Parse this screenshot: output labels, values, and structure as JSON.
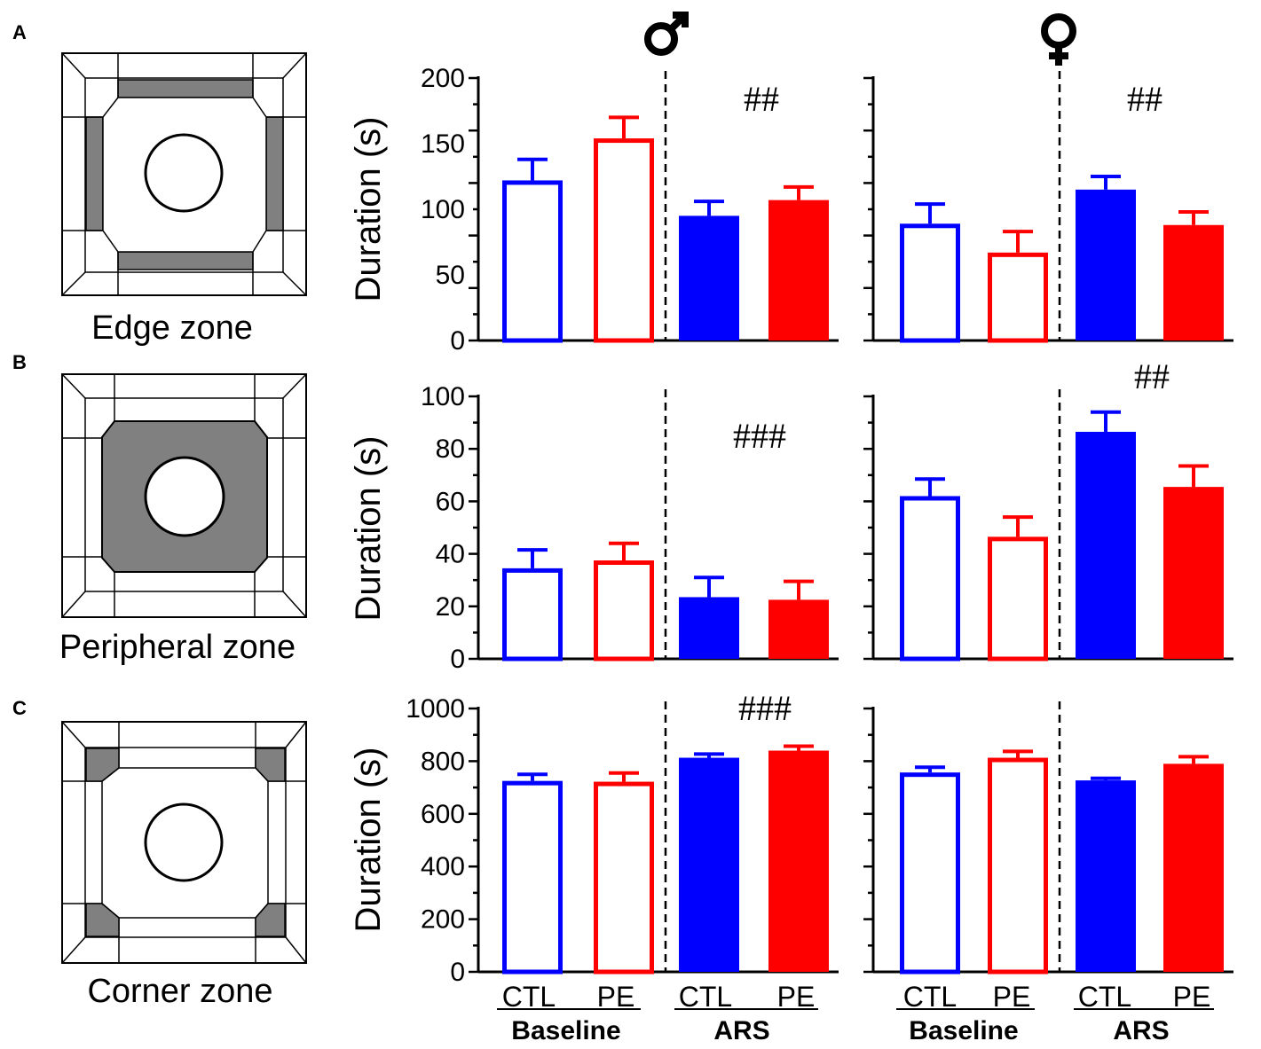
{
  "panel_labels": [
    "A",
    "B",
    "C"
  ],
  "zones": [
    "Edge zone",
    "Peripheral zone",
    "Corner zone"
  ],
  "sex_headers": [
    "male-symbol",
    "female-symbol"
  ],
  "x_axis": {
    "categories": [
      "CTL",
      "PE",
      "CTL",
      "PE"
    ],
    "groups": [
      "Baseline",
      "ARS"
    ]
  },
  "colors": {
    "ctl": "#0000ff",
    "pe": "#ff0000",
    "axis": "#000000",
    "zone_fill": "#808080"
  },
  "chart_data": [
    {
      "type": "bar",
      "panel": "A",
      "zone": "Edge zone",
      "sex": "male",
      "ylabel": "Duration (s)",
      "ylim": [
        0,
        200
      ],
      "yticks": [
        "0",
        "50",
        "100",
        "150",
        "200"
      ],
      "categories": [
        "Baseline CTL",
        "Baseline PE",
        "ARS CTL",
        "ARS PE"
      ],
      "values": [
        122,
        154,
        95,
        107
      ],
      "errors": [
        16,
        16,
        11,
        10
      ],
      "filled": [
        false,
        false,
        true,
        true
      ],
      "significance": "##"
    },
    {
      "type": "bar",
      "panel": "A",
      "zone": "Edge zone",
      "sex": "female",
      "ylabel": "",
      "ylim": [
        0,
        200
      ],
      "yticks": [],
      "categories": [
        "Baseline CTL",
        "Baseline PE",
        "ARS CTL",
        "ARS PE"
      ],
      "values": [
        89,
        67,
        115,
        88
      ],
      "errors": [
        15,
        16,
        10,
        10
      ],
      "filled": [
        false,
        false,
        true,
        true
      ],
      "significance": "##"
    },
    {
      "type": "bar",
      "panel": "B",
      "zone": "Peripheral zone",
      "sex": "male",
      "ylabel": "Duration (s)",
      "ylim": [
        0,
        100
      ],
      "yticks": [
        "0",
        "20",
        "40",
        "60",
        "80",
        "100"
      ],
      "categories": [
        "Baseline CTL",
        "Baseline PE",
        "ARS CTL",
        "ARS PE"
      ],
      "values": [
        34.5,
        37.5,
        23.5,
        22.5
      ],
      "errors": [
        7,
        6.5,
        7.5,
        7
      ],
      "filled": [
        false,
        false,
        true,
        true
      ],
      "significance": "###"
    },
    {
      "type": "bar",
      "panel": "B",
      "zone": "Peripheral zone",
      "sex": "female",
      "ylabel": "",
      "ylim": [
        0,
        100
      ],
      "yticks": [],
      "categories": [
        "Baseline CTL",
        "Baseline PE",
        "ARS CTL",
        "ARS PE"
      ],
      "values": [
        62,
        46.5,
        86.5,
        65.5
      ],
      "errors": [
        6.5,
        7.5,
        7.5,
        8
      ],
      "filled": [
        false,
        false,
        true,
        true
      ],
      "significance": "##"
    },
    {
      "type": "bar",
      "panel": "C",
      "zone": "Corner zone",
      "sex": "male",
      "ylabel": "Duration (s)",
      "ylim": [
        0,
        1000
      ],
      "yticks": [
        "0",
        "200",
        "400",
        "600",
        "800",
        "1000"
      ],
      "categories": [
        "Baseline CTL",
        "Baseline PE",
        "ARS CTL",
        "ARS PE"
      ],
      "values": [
        725,
        722,
        813,
        840
      ],
      "errors": [
        25,
        33,
        14,
        17
      ],
      "filled": [
        false,
        false,
        true,
        true
      ],
      "significance": "###"
    },
    {
      "type": "bar",
      "panel": "C",
      "zone": "Corner zone",
      "sex": "female",
      "ylabel": "",
      "ylim": [
        0,
        1000
      ],
      "yticks": [],
      "categories": [
        "Baseline CTL",
        "Baseline PE",
        "ARS CTL",
        "ARS PE"
      ],
      "values": [
        757,
        813,
        727,
        790
      ],
      "errors": [
        20,
        24,
        8,
        27
      ],
      "filled": [
        false,
        false,
        true,
        true
      ],
      "significance": ""
    }
  ]
}
